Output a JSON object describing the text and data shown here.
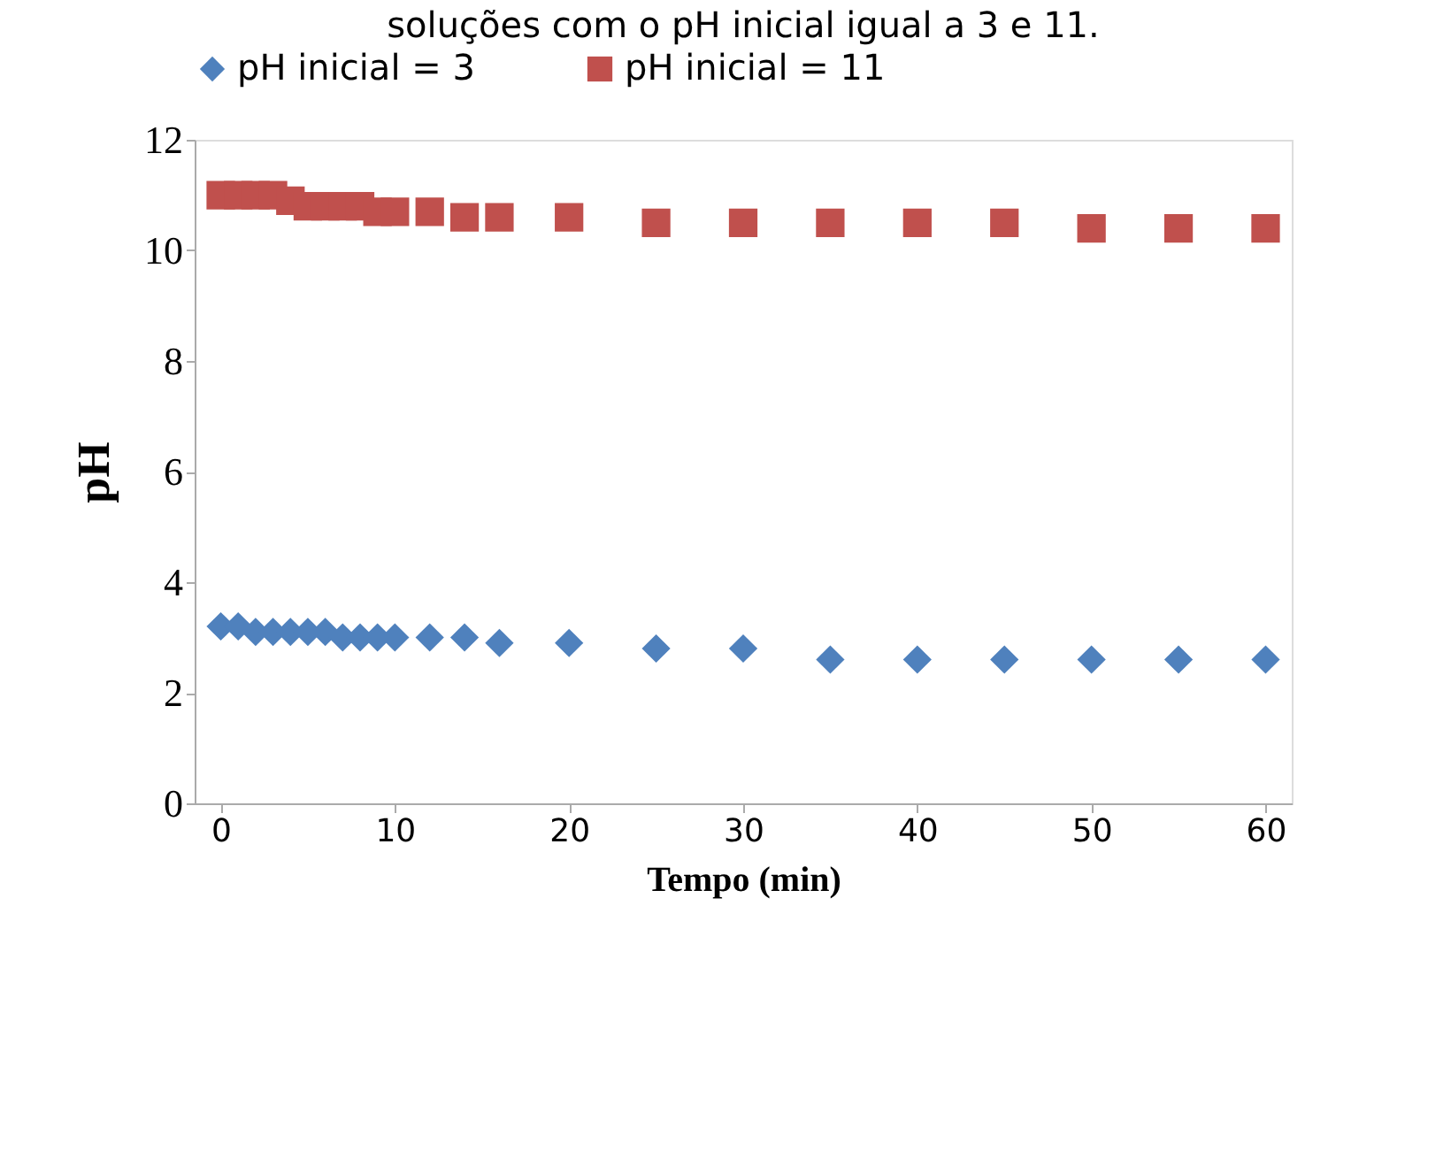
{
  "chart_data": {
    "type": "scatter",
    "title": "soluções com o pH inicial igual a 3 e 11.",
    "xlabel": "Tempo (min)",
    "ylabel": "pH",
    "x": [
      0,
      1,
      2,
      3,
      4,
      5,
      6,
      7,
      8,
      9,
      10,
      12,
      14,
      16,
      20,
      25,
      30,
      35,
      40,
      45,
      50,
      55,
      60
    ],
    "series": [
      {
        "name": "pH inicial = 3",
        "color": "#4f81bd",
        "marker": "diamond",
        "values": [
          3.2,
          3.2,
          3.1,
          3.1,
          3.1,
          3.1,
          3.1,
          3.0,
          3.0,
          3.0,
          3.0,
          3.0,
          3.0,
          2.9,
          2.9,
          2.8,
          2.8,
          2.6,
          2.6,
          2.6,
          2.6,
          2.6,
          2.6
        ]
      },
      {
        "name": "pH inicial = 11",
        "color": "#c0504d",
        "marker": "square",
        "values": [
          11.0,
          11.0,
          11.0,
          11.0,
          10.9,
          10.8,
          10.8,
          10.8,
          10.8,
          10.7,
          10.7,
          10.7,
          10.6,
          10.6,
          10.6,
          10.5,
          10.5,
          10.5,
          10.5,
          10.5,
          10.4,
          10.4,
          10.4
        ]
      }
    ],
    "xlim": [
      -1.5,
      61.5
    ],
    "xticks": [
      0,
      10,
      20,
      30,
      40,
      50,
      60
    ],
    "ylim": [
      0,
      12
    ],
    "yticks": [
      0,
      2,
      4,
      6,
      8,
      10,
      12
    ],
    "grid": false,
    "legend": "top"
  }
}
